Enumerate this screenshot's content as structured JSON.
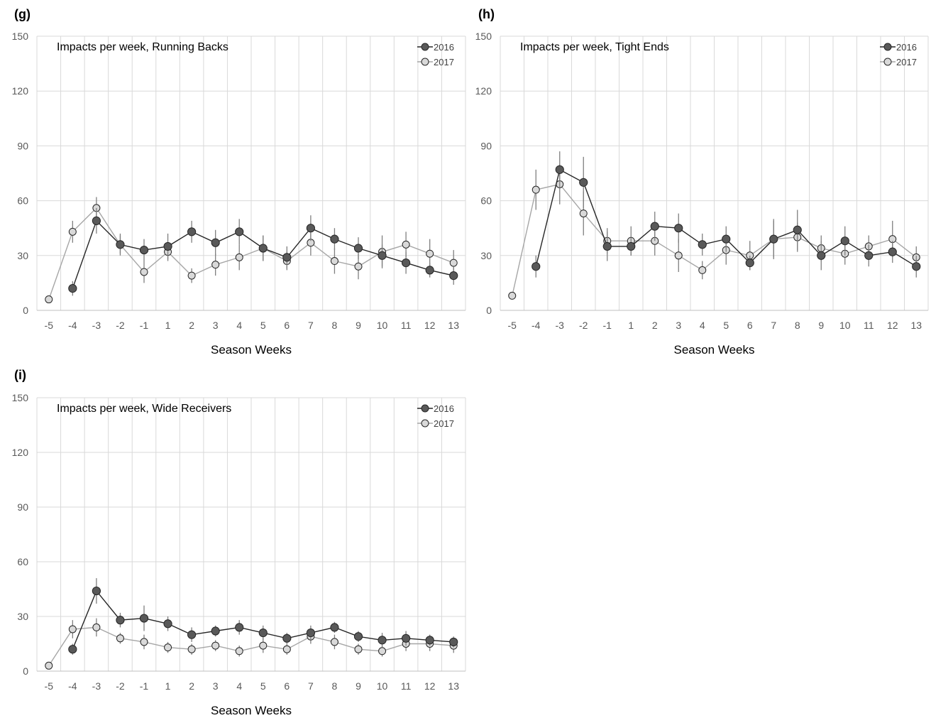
{
  "colors": {
    "series_2016": "#595959",
    "series_2017": "#d9d9d9",
    "line_2016": "#262626",
    "line_2017": "#a6a6a6",
    "marker_edge": "#262626",
    "grid": "#d9d9d9",
    "error_bar": "#7f7f7f"
  },
  "chart_data": [
    {
      "panel": "(g)",
      "type": "line",
      "title": "Impacts per week, Running Backs",
      "xlabel": "Season Weeks",
      "ylabel": "",
      "categories": [
        "-5",
        "-4",
        "-3",
        "-2",
        "-1",
        "1",
        "2",
        "3",
        "4",
        "5",
        "6",
        "7",
        "8",
        "9",
        "10",
        "11",
        "12",
        "13"
      ],
      "ylim": [
        0,
        150
      ],
      "yticks": [
        0,
        30,
        60,
        90,
        120,
        150
      ],
      "grid": "horizontal and vertical",
      "legend": "top-right",
      "series": [
        {
          "name": "2016",
          "values": [
            null,
            12,
            49,
            36,
            33,
            35,
            43,
            37,
            43,
            34,
            29,
            45,
            39,
            34,
            30,
            26,
            22,
            19
          ],
          "errors": [
            null,
            4,
            7,
            6,
            6,
            7,
            6,
            7,
            7,
            7,
            6,
            7,
            6,
            6,
            6,
            6,
            4,
            5
          ]
        },
        {
          "name": "2017",
          "values": [
            6,
            43,
            56,
            36,
            21,
            32,
            19,
            25,
            29,
            34,
            27,
            37,
            27,
            24,
            32,
            36,
            31,
            26
          ],
          "errors": [
            0,
            6,
            6,
            5,
            6,
            5,
            4,
            6,
            7,
            7,
            5,
            7,
            7,
            7,
            9,
            7,
            8,
            7
          ]
        }
      ]
    },
    {
      "panel": "(h)",
      "type": "line",
      "title": "Impacts per week, Tight Ends",
      "xlabel": "Season Weeks",
      "ylabel": "",
      "categories": [
        "-5",
        "-4",
        "-3",
        "-2",
        "-1",
        "1",
        "2",
        "3",
        "4",
        "5",
        "6",
        "7",
        "8",
        "9",
        "10",
        "11",
        "12",
        "13"
      ],
      "ylim": [
        0,
        150
      ],
      "yticks": [
        0,
        30,
        60,
        90,
        120,
        150
      ],
      "grid": "horizontal and vertical",
      "legend": "top-right",
      "series": [
        {
          "name": "2016",
          "values": [
            null,
            24,
            77,
            70,
            35,
            35,
            46,
            45,
            36,
            39,
            26,
            39,
            44,
            30,
            38,
            30,
            32,
            24
          ],
          "errors": [
            null,
            6,
            10,
            14,
            8,
            5,
            8,
            8,
            6,
            7,
            4,
            11,
            11,
            8,
            8,
            6,
            6,
            6
          ]
        },
        {
          "name": "2017",
          "values": [
            8,
            66,
            69,
            53,
            38,
            38,
            38,
            30,
            22,
            33,
            30,
            39,
            40,
            34,
            31,
            35,
            39,
            29
          ],
          "errors": [
            0,
            11,
            11,
            12,
            7,
            8,
            8,
            9,
            5,
            8,
            8,
            10,
            8,
            7,
            6,
            6,
            10,
            6
          ]
        }
      ]
    },
    {
      "panel": "(i)",
      "type": "line",
      "title": "Impacts per week, Wide Receivers",
      "xlabel": "Season Weeks",
      "ylabel": "",
      "categories": [
        "-5",
        "-4",
        "-3",
        "-2",
        "-1",
        "1",
        "2",
        "3",
        "4",
        "5",
        "6",
        "7",
        "8",
        "9",
        "10",
        "11",
        "12",
        "13"
      ],
      "ylim": [
        0,
        150
      ],
      "yticks": [
        0,
        30,
        60,
        90,
        120,
        150
      ],
      "grid": "horizontal and vertical",
      "legend": "top-right",
      "series": [
        {
          "name": "2016",
          "values": [
            null,
            12,
            44,
            28,
            29,
            26,
            20,
            22,
            24,
            21,
            18,
            21,
            24,
            19,
            17,
            18,
            17,
            16
          ],
          "errors": [
            null,
            3,
            7,
            4,
            7,
            4,
            4,
            3,
            4,
            4,
            3,
            4,
            3,
            3,
            4,
            4,
            3,
            3
          ]
        },
        {
          "name": "2017",
          "values": [
            3,
            23,
            24,
            18,
            16,
            13,
            12,
            14,
            11,
            14,
            12,
            19,
            16,
            12,
            11,
            15,
            15,
            14
          ],
          "errors": [
            0,
            5,
            5,
            3,
            4,
            3,
            3,
            3,
            3,
            4,
            3,
            4,
            4,
            3,
            3,
            4,
            4,
            4
          ]
        }
      ]
    }
  ]
}
